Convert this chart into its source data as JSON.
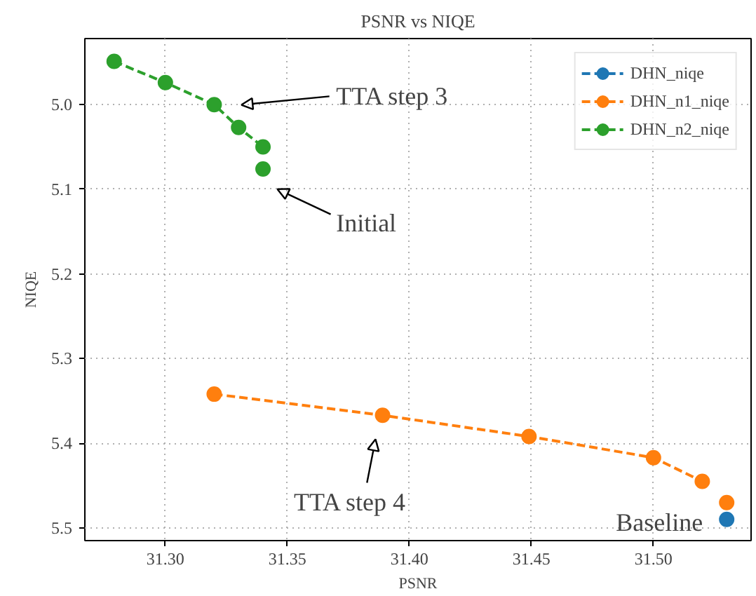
{
  "chart_data": {
    "type": "line",
    "title": "PSNR vs NIQE",
    "xlabel": "PSNR",
    "ylabel": "NIQE",
    "xlim": [
      31.267,
      31.54
    ],
    "xticks": [
      {
        "value": 31.3,
        "label": "31.30"
      },
      {
        "value": 31.35,
        "label": "31.35"
      },
      {
        "value": 31.4,
        "label": "31.40"
      },
      {
        "value": 31.45,
        "label": "31.45"
      },
      {
        "value": 31.5,
        "label": "31.50"
      }
    ],
    "ylim": [
      5.515,
      4.922
    ],
    "yticks": [
      {
        "value": 5.0,
        "label": "5.0"
      },
      5.1,
      5.2,
      5.3,
      5.4,
      5.5
    ],
    "grid": true,
    "legend": "top right",
    "marker": "circle",
    "line_style": "dashed",
    "series": [
      {
        "name": "DHN_niqe",
        "color": "#1f77b4",
        "x": [
          31.53
        ],
        "values": [
          5.49
        ]
      },
      {
        "name": "DHN_n1_niqe",
        "color": "#ff7f0e",
        "x": [
          31.32,
          31.389,
          31.449,
          31.5,
          31.52
        ],
        "values": [
          5.342,
          5.367,
          5.392,
          5.417,
          5.445
        ]
      },
      {
        "name": "DHN_n2_niqe",
        "color": "#2ca02c",
        "x": [
          31.279,
          31.3,
          31.32,
          31.33,
          31.34
        ],
        "values": [
          4.949,
          4.974,
          5.0,
          5.027,
          5.05
        ]
      },
      {
        "type": "scatter",
        "color": "#ff7f0e",
        "x": [
          31.53
        ],
        "values": [
          5.47
        ]
      },
      {
        "type": "scatter",
        "color": "#2ca02c",
        "x": [
          31.34
        ],
        "values": [
          5.076
        ]
      }
    ],
    "annotations": [
      "TTA step 3",
      "Initial",
      {
        "text": "TTA step 4",
        "x": 31.389,
        "y": 5.367
      },
      {
        "text": "Baseline",
        "x": 31.53,
        "y": 5.49
      }
    ]
  }
}
